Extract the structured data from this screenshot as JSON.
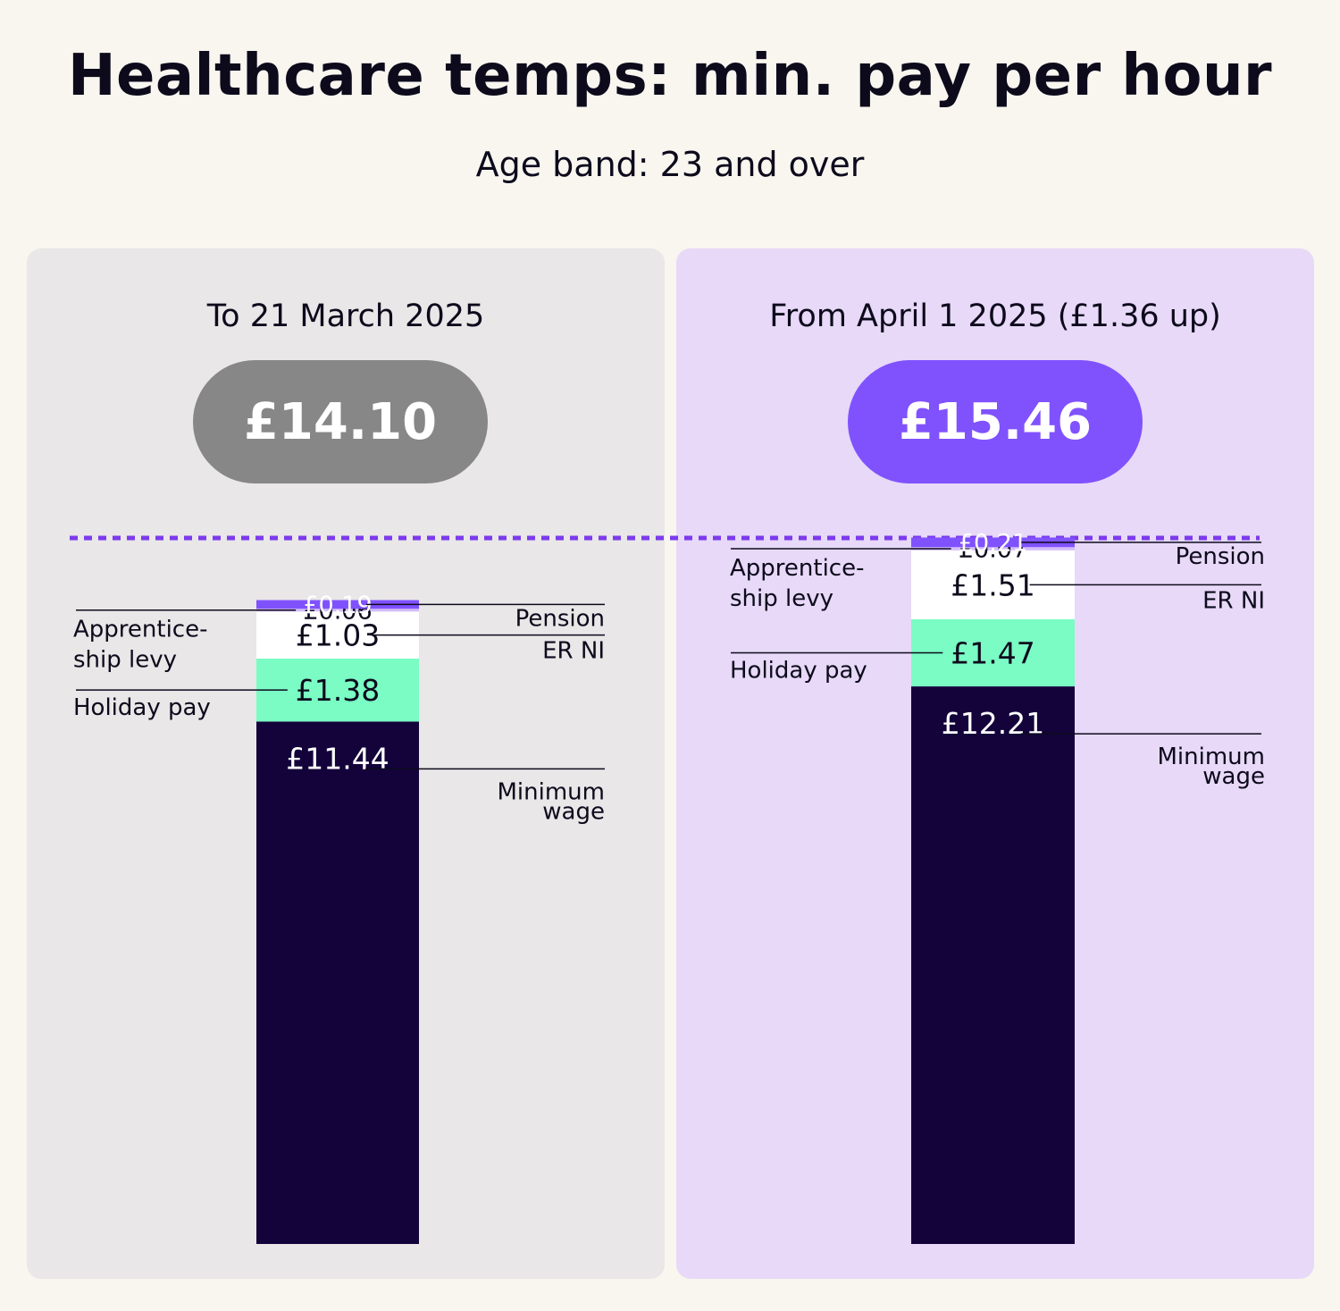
{
  "title": "Healthcare temps: min. pay per hour",
  "subtitle": "Age band: 23 and over",
  "colors": {
    "pension": "#8052fe",
    "apprenticeship_levy": "#d4bdfa",
    "er_ni": "#ffffff",
    "holiday_pay": "#7afcc4",
    "minimum_wage": "#13033a",
    "pill_before": "#878787",
    "pill_after": "#8052fe",
    "dotted_line": "#7c3aed"
  },
  "chart_data": {
    "type": "bar",
    "stacked": true,
    "title": "Healthcare temps: min. pay per hour",
    "subtitle": "Age band: 23 and over",
    "unit": "£ per hour",
    "categories": [
      "To 21 March 2025",
      "From April 1 2025 (£1.36 up)"
    ],
    "totals": [
      14.1,
      15.46
    ],
    "total_labels": [
      "£14.10",
      "£15.46"
    ],
    "series": [
      {
        "name": "Minimum wage",
        "values": [
          11.44,
          12.21
        ],
        "labels": [
          "£11.44",
          "£12.21"
        ],
        "color": "#13033a"
      },
      {
        "name": "Holiday pay",
        "values": [
          1.38,
          1.47
        ],
        "labels": [
          "£1.38",
          "£1.47"
        ],
        "color": "#7afcc4"
      },
      {
        "name": "ER NI",
        "values": [
          1.03,
          1.51
        ],
        "labels": [
          "£1.03",
          "£1.51"
        ],
        "color": "#ffffff"
      },
      {
        "name": "Apprenticeship levy",
        "display_label": "Apprentice-ship levy",
        "values": [
          0.06,
          0.07
        ],
        "labels": [
          "£0.06",
          "£0.07"
        ],
        "color": "#d4bdfa"
      },
      {
        "name": "Pension",
        "values": [
          0.19,
          0.21
        ],
        "labels": [
          "£0.19",
          "£0.21"
        ],
        "color": "#8052fe"
      }
    ],
    "series_labels": [
      [
        "Minimum",
        "wage"
      ],
      [
        "Holiday pay"
      ],
      [
        "ER NI"
      ],
      [
        "Apprentice-",
        "ship levy"
      ],
      [
        "Pension"
      ]
    ],
    "reference_line": "dotted line at the top of the April 2025 bar",
    "grid": false
  }
}
